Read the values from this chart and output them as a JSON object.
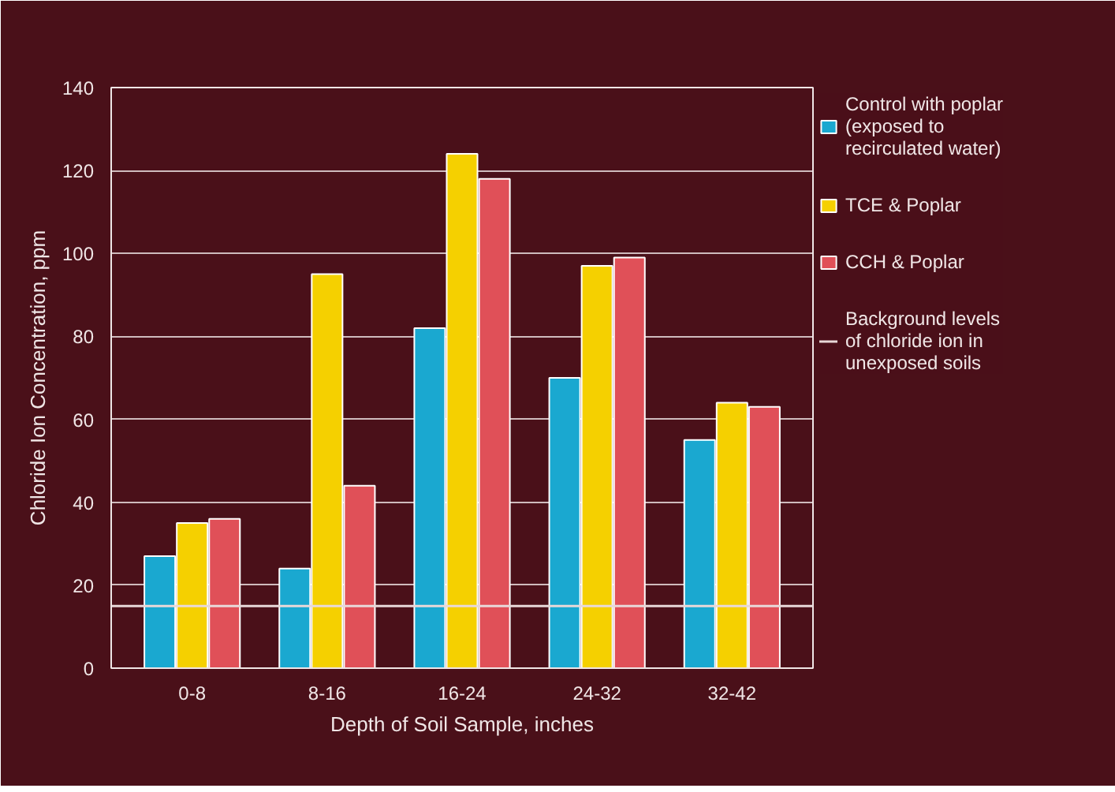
{
  "chart_data": {
    "type": "bar",
    "xlabel": "Depth of Soil Sample, inches",
    "ylabel": "Chloride Ion Concentration, ppm",
    "categories": [
      "0-8",
      "8-16",
      "16-24",
      "24-32",
      "32-42"
    ],
    "series": [
      {
        "name": "Control with poplar (exposed to recirculated water)",
        "color": "#1aa8d0",
        "values": [
          27,
          24,
          82,
          70,
          55
        ]
      },
      {
        "name": "TCE & Poplar",
        "color": "#f5d000",
        "values": [
          35,
          95,
          124,
          97,
          64
        ]
      },
      {
        "name": "CCH & Poplar",
        "color": "#e05058",
        "values": [
          36,
          44,
          118,
          99,
          63
        ]
      }
    ],
    "ylim": [
      0,
      140
    ],
    "yticks": [
      0,
      20,
      40,
      60,
      80,
      100,
      120,
      140
    ],
    "grid": "y",
    "legend": "right",
    "ref_lines": [
      {
        "axis": "y",
        "value": 15,
        "label": "Background levels of chloride ion in unexposed soils",
        "color": "#e8d8d8"
      }
    ]
  }
}
